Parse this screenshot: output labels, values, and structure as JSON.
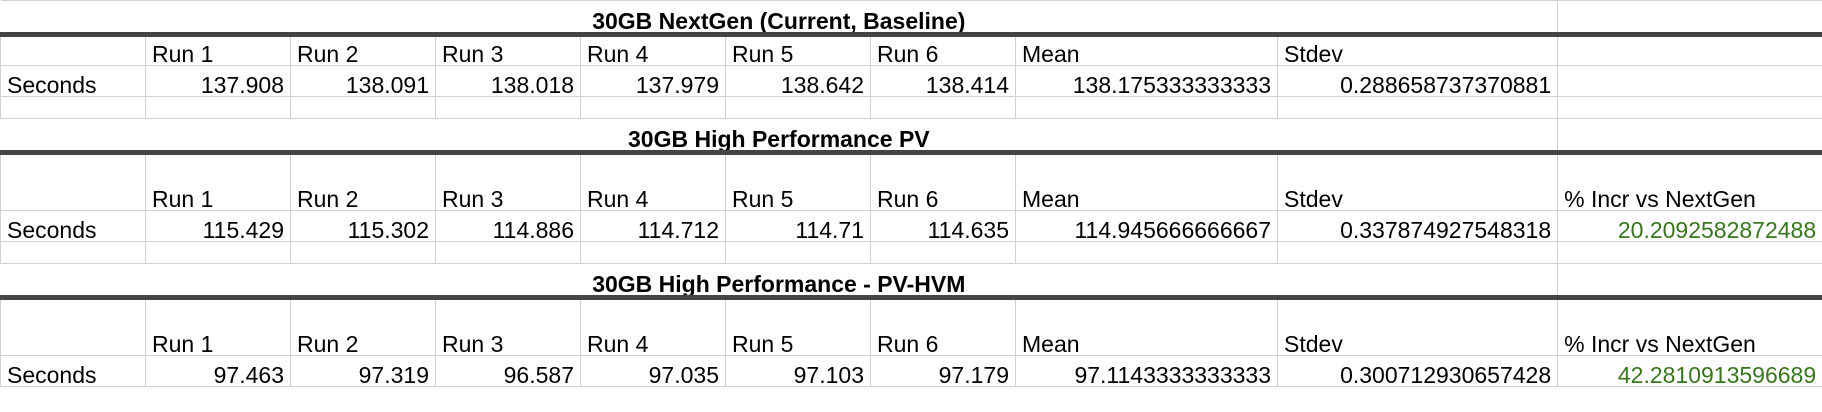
{
  "sections": [
    {
      "title": "30GB NextGen (Current, Baseline)",
      "headers": [
        "Run 1",
        "Run 2",
        "Run 3",
        "Run 4",
        "Run 5",
        "Run 6",
        "Mean",
        "Stdev",
        ""
      ],
      "row_label": "Seconds",
      "values": [
        "137.908",
        "138.091",
        "138.018",
        "137.979",
        "138.642",
        "138.414",
        "138.175333333333",
        "0.288658737370881",
        ""
      ]
    },
    {
      "title": "30GB High Performance PV",
      "headers": [
        "Run 1",
        "Run 2",
        "Run 3",
        "Run 4",
        "Run 5",
        "Run 6",
        "Mean",
        "Stdev",
        "% Incr vs NextGen"
      ],
      "row_label": "Seconds",
      "values": [
        "115.429",
        "115.302",
        "114.886",
        "114.712",
        "114.71",
        "114.635",
        "114.945666666667",
        "0.337874927548318",
        "20.2092582872488"
      ]
    },
    {
      "title": "30GB High Performance - PV-HVM",
      "headers": [
        "Run 1",
        "Run 2",
        "Run 3",
        "Run 4",
        "Run 5",
        "Run 6",
        "Mean",
        "Stdev",
        "% Incr vs NextGen"
      ],
      "row_label": "Seconds",
      "values": [
        "97.463",
        "97.319",
        "96.587",
        "97.035",
        "97.103",
        "97.179",
        "97.1143333333333",
        "0.300712930657428",
        "42.2810913596689"
      ]
    }
  ],
  "colors": {
    "percent_text": "#38761d",
    "section_rule": "#444444",
    "gridline": "#d0d0d0"
  }
}
